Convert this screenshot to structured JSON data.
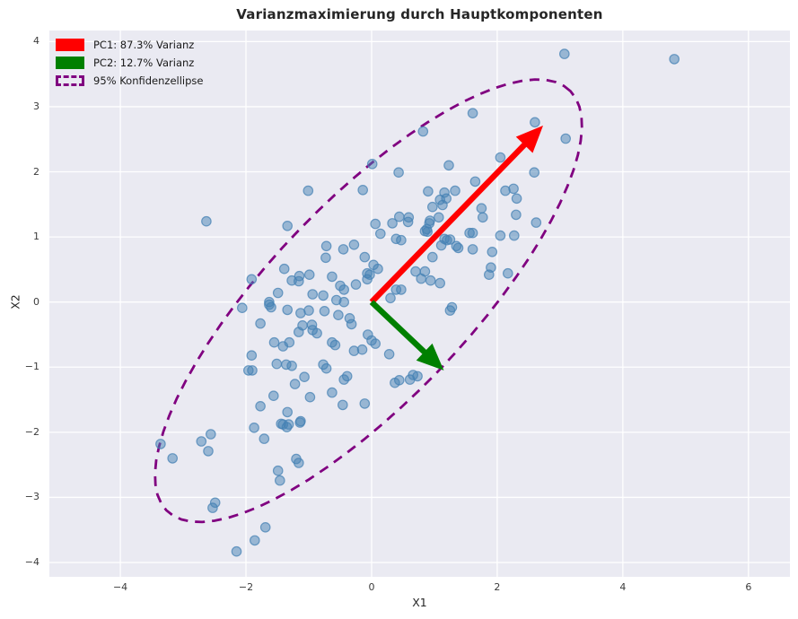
{
  "title": "Varianzmaximierung durch Hauptkomponenten",
  "axes": {
    "xlabel": "X1",
    "ylabel": "X2",
    "xtick_labels": [
      "−4",
      "−2",
      "0",
      "2",
      "4",
      "6"
    ],
    "ytick_labels": [
      "−4",
      "−3",
      "−2",
      "−1",
      "0",
      "1",
      "2",
      "3",
      "4"
    ]
  },
  "legend": {
    "items": [
      {
        "label": "PC1: 87.3% Varianz",
        "color": "#ff0000",
        "shape": "filled-rect"
      },
      {
        "label": "PC2: 12.7% Varianz",
        "color": "#008000",
        "shape": "filled-rect"
      },
      {
        "label": "95% Konfidenzellipse",
        "color": "#800080",
        "shape": "dashed-box"
      }
    ]
  },
  "colors": {
    "axes_background": "#eaeaf2",
    "grid": "#ffffff",
    "scatter_point": "#4682b4",
    "pc1_arrow": "#ff0000",
    "pc2_arrow": "#008000",
    "ellipse": "#800080",
    "text": "#262626"
  },
  "chart_data": {
    "type": "scatter",
    "title": "Varianzmaximierung durch Hauptkomponenten",
    "xlabel": "X1",
    "ylabel": "X2",
    "xlim": [
      -5.13,
      6.66
    ],
    "ylim": [
      -4.22,
      4.17
    ],
    "xticks": [
      -4,
      -2,
      0,
      2,
      4,
      6
    ],
    "yticks": [
      -4,
      -3,
      -2,
      -1,
      0,
      1,
      2,
      3,
      4
    ],
    "grid": true,
    "legend_position": "upper left",
    "series": [
      {
        "name": "Datenpunkte",
        "marker": "circle",
        "color": "#4682b4",
        "alpha": 0.6,
        "points": [
          [
            3.07,
            3.81
          ],
          [
            4.82,
            3.73
          ],
          [
            2.6,
            2.76
          ],
          [
            1.61,
            2.9
          ],
          [
            3.09,
            2.51
          ],
          [
            0.82,
            2.62
          ],
          [
            2.05,
            2.22
          ],
          [
            1.23,
            2.1
          ],
          [
            0.01,
            2.12
          ],
          [
            0.43,
            1.99
          ],
          [
            2.59,
            1.99
          ],
          [
            -1.01,
            1.71
          ],
          [
            -0.14,
            1.72
          ],
          [
            -2.63,
            1.24
          ],
          [
            -1.34,
            1.17
          ],
          [
            1.16,
            1.68
          ],
          [
            1.33,
            1.71
          ],
          [
            0.9,
            1.7
          ],
          [
            1.09,
            1.57
          ],
          [
            1.19,
            1.59
          ],
          [
            0.97,
            1.46
          ],
          [
            1.13,
            1.49
          ],
          [
            2.13,
            1.71
          ],
          [
            2.26,
            1.74
          ],
          [
            1.75,
            1.44
          ],
          [
            2.31,
            1.59
          ],
          [
            1.77,
            1.3
          ],
          [
            2.3,
            1.34
          ],
          [
            2.62,
            1.22
          ],
          [
            0.93,
            1.25
          ],
          [
            1.65,
            1.85
          ],
          [
            0.44,
            1.31
          ],
          [
            0.59,
            1.3
          ],
          [
            0.33,
            1.21
          ],
          [
            0.58,
            1.23
          ],
          [
            0.06,
            1.2
          ],
          [
            0.14,
            1.05
          ],
          [
            0.92,
            1.21
          ],
          [
            1.07,
            1.3
          ],
          [
            0.85,
            1.09
          ],
          [
            0.88,
            1.12
          ],
          [
            1.16,
            0.97
          ],
          [
            1.2,
            0.95
          ],
          [
            1.35,
            0.86
          ],
          [
            1.38,
            0.83
          ],
          [
            1.56,
            1.06
          ],
          [
            2.05,
            1.02
          ],
          [
            2.27,
            1.02
          ],
          [
            1.61,
            1.06
          ],
          [
            1.25,
            0.96
          ],
          [
            1.92,
            0.77
          ],
          [
            1.61,
            0.81
          ],
          [
            0.89,
            1.08
          ],
          [
            1.11,
            0.87
          ],
          [
            0.39,
            0.97
          ],
          [
            0.47,
            0.95
          ],
          [
            -0.72,
            0.86
          ],
          [
            -0.73,
            0.68
          ],
          [
            -0.45,
            0.81
          ],
          [
            -0.28,
            0.88
          ],
          [
            0.97,
            0.69
          ],
          [
            1.9,
            0.53
          ],
          [
            1.87,
            0.42
          ],
          [
            2.17,
            0.44
          ],
          [
            0.03,
            0.57
          ],
          [
            0.1,
            0.51
          ],
          [
            -0.11,
            0.69
          ],
          [
            -0.07,
            0.44
          ],
          [
            -0.07,
            0.35
          ],
          [
            -0.03,
            0.42
          ],
          [
            -1.39,
            0.51
          ],
          [
            -1.91,
            0.35
          ],
          [
            -1.16,
            0.32
          ],
          [
            -0.99,
            0.42
          ],
          [
            -0.63,
            0.39
          ],
          [
            -0.5,
            0.25
          ],
          [
            -0.25,
            0.27
          ],
          [
            0.7,
            0.47
          ],
          [
            0.85,
            0.47
          ],
          [
            0.79,
            0.36
          ],
          [
            1.09,
            0.29
          ],
          [
            0.94,
            0.33
          ],
          [
            0.47,
            0.19
          ],
          [
            0.39,
            0.19
          ],
          [
            0.3,
            0.06
          ],
          [
            -0.44,
            0.19
          ],
          [
            -0.77,
            0.1
          ],
          [
            -0.94,
            0.12
          ],
          [
            -1.63,
            0.0
          ],
          [
            -1.27,
            0.33
          ],
          [
            -1.15,
            0.4
          ],
          [
            -1.49,
            0.14
          ],
          [
            -1.6,
            -0.08
          ],
          [
            -2.06,
            -0.09
          ],
          [
            -1.77,
            -0.33
          ],
          [
            -1.63,
            -0.04
          ],
          [
            -1.34,
            -0.12
          ],
          [
            -1.13,
            -0.17
          ],
          [
            -1.0,
            -0.13
          ],
          [
            -0.75,
            -0.14
          ],
          [
            -0.56,
            0.03
          ],
          [
            -0.44,
            0.0
          ],
          [
            -0.53,
            -0.2
          ],
          [
            -0.95,
            -0.35
          ],
          [
            -1.16,
            -0.46
          ],
          [
            -0.87,
            -0.48
          ],
          [
            -1.1,
            -0.36
          ],
          [
            -0.94,
            -0.43
          ],
          [
            -0.35,
            -0.25
          ],
          [
            -0.32,
            -0.34
          ],
          [
            -0.28,
            -0.75
          ],
          [
            -0.15,
            -0.73
          ],
          [
            -0.06,
            -0.5
          ],
          [
            0.0,
            -0.59
          ],
          [
            0.06,
            -0.64
          ],
          [
            -0.63,
            -0.62
          ],
          [
            -0.58,
            -0.66
          ],
          [
            -1.55,
            -0.62
          ],
          [
            -1.41,
            -0.68
          ],
          [
            -1.31,
            -0.62
          ],
          [
            0.28,
            -0.8
          ],
          [
            1.28,
            -0.08
          ],
          [
            1.25,
            -0.13
          ],
          [
            -1.51,
            -0.95
          ],
          [
            -1.36,
            -0.96
          ],
          [
            -1.27,
            -0.98
          ],
          [
            -1.91,
            -0.82
          ],
          [
            -1.96,
            -1.05
          ],
          [
            -1.9,
            -1.05
          ],
          [
            -1.07,
            -1.15
          ],
          [
            -1.22,
            -1.26
          ],
          [
            -0.77,
            -0.96
          ],
          [
            -0.72,
            -1.02
          ],
          [
            -0.39,
            -1.14
          ],
          [
            0.37,
            -1.24
          ],
          [
            0.44,
            -1.2
          ],
          [
            0.66,
            -1.12
          ],
          [
            0.73,
            -1.14
          ],
          [
            -0.11,
            -1.56
          ],
          [
            -0.98,
            -1.46
          ],
          [
            -0.63,
            -1.39
          ],
          [
            -0.46,
            -1.58
          ],
          [
            -0.44,
            -1.19
          ],
          [
            0.61,
            -1.19
          ],
          [
            -1.77,
            -1.6
          ],
          [
            -1.56,
            -1.44
          ],
          [
            -1.34,
            -1.69
          ],
          [
            -1.32,
            -1.88
          ],
          [
            -1.44,
            -1.87
          ],
          [
            -1.13,
            -1.83
          ],
          [
            -1.87,
            -1.93
          ],
          [
            -1.71,
            -2.1
          ],
          [
            -1.41,
            -1.88
          ],
          [
            -1.35,
            -1.92
          ],
          [
            -1.14,
            -1.85
          ],
          [
            -1.2,
            -2.41
          ],
          [
            -1.16,
            -2.47
          ],
          [
            -1.49,
            -2.59
          ],
          [
            -1.46,
            -2.74
          ],
          [
            -3.36,
            -2.18
          ],
          [
            -3.17,
            -2.4
          ],
          [
            -2.71,
            -2.14
          ],
          [
            -2.56,
            -2.03
          ],
          [
            -2.6,
            -2.29
          ],
          [
            -2.49,
            -3.08
          ],
          [
            -2.53,
            -3.16
          ],
          [
            -1.86,
            -3.66
          ],
          [
            -2.15,
            -3.83
          ],
          [
            -1.69,
            -3.46
          ]
        ]
      }
    ],
    "annotations": {
      "arrows": [
        {
          "name": "PC1",
          "from": [
            0,
            0
          ],
          "to": [
            2.73,
            2.71
          ],
          "color": "#ff0000",
          "label": "PC1: 87.3% Varianz",
          "variance_pct": 87.3
        },
        {
          "name": "PC2",
          "from": [
            0,
            0
          ],
          "to": [
            1.15,
            -1.05
          ],
          "color": "#008000",
          "label": "PC2: 12.7% Varianz",
          "variance_pct": 12.7
        }
      ],
      "ellipse": {
        "label": "95% Konfidenzellipse",
        "center": [
          -0.05,
          0.02
        ],
        "semi_major": 4.55,
        "semi_minor": 1.55,
        "angle_deg": 45,
        "color": "#800080",
        "line_style": "dashed"
      }
    }
  }
}
